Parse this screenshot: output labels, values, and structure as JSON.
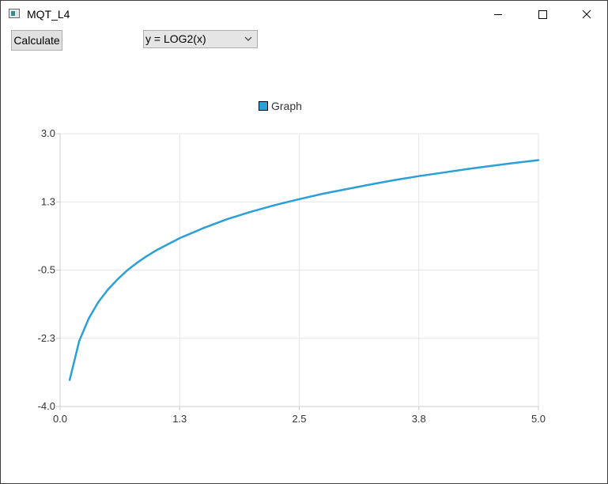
{
  "window": {
    "title": "MQT_L4"
  },
  "toolbar": {
    "calculate_label": "Calculate",
    "function_select_value": "y = LOG2(x)"
  },
  "colors": {
    "series": "#2a9fd8",
    "grid": "#e6e6e6",
    "axis": "#cccccc"
  },
  "chart_data": {
    "type": "line",
    "title": "",
    "xlabel": "",
    "ylabel": "",
    "legend": "top-center",
    "grid": true,
    "xlim": [
      0.0,
      5.0
    ],
    "ylim": [
      -4.0,
      3.0
    ],
    "x_ticks": [
      "0.0",
      "1.3",
      "2.5",
      "3.8",
      "5.0"
    ],
    "y_ticks": [
      "3.0",
      "1.3",
      "-0.5",
      "-2.3",
      "-4.0"
    ],
    "series": [
      {
        "name": "Graph",
        "x": [
          0.1,
          0.2,
          0.3,
          0.4,
          0.5,
          0.6,
          0.7,
          0.8,
          0.9,
          1.0,
          1.25,
          1.5,
          1.75,
          2.0,
          2.25,
          2.5,
          2.75,
          3.0,
          3.25,
          3.5,
          3.75,
          4.0,
          4.25,
          4.5,
          4.75,
          5.0
        ],
        "values": [
          -3.32,
          -2.32,
          -1.74,
          -1.32,
          -1.0,
          -0.74,
          -0.51,
          -0.32,
          -0.15,
          0.0,
          0.32,
          0.58,
          0.81,
          1.0,
          1.17,
          1.32,
          1.46,
          1.58,
          1.7,
          1.81,
          1.91,
          2.0,
          2.09,
          2.17,
          2.25,
          2.32
        ]
      }
    ]
  }
}
